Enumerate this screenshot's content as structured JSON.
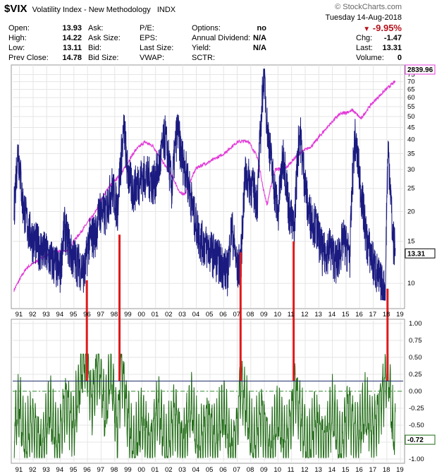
{
  "header": {
    "symbol": "$VIX",
    "name": "Volatility Index - New Methodology",
    "exchange": "INDX",
    "brand": "© StockCharts.com",
    "date": "Tuesday  14-Aug-2018",
    "change_pct": "-9.95%",
    "stats": {
      "open_label": "Open:",
      "open": "13.93",
      "high_label": "High:",
      "high": "14.22",
      "low_label": "Low:",
      "low": "13.11",
      "prev_label": "Prev Close:",
      "prev": "14.78",
      "ask_label": "Ask:",
      "ask": "",
      "asksize_label": "Ask Size:",
      "asksize": "",
      "bid_label": "Bid:",
      "bid": "",
      "bidsize_label": "Bid Size:",
      "bidsize": "",
      "pe_label": "P/E:",
      "pe": "",
      "eps_label": "EPS:",
      "eps": "",
      "lastsize_label": "Last Size:",
      "lastsize": "",
      "vwap_label": "VWAP:",
      "vwap": "",
      "options_label": "Options:",
      "options": "no",
      "div_label": "Annual Dividend:",
      "div": "N/A",
      "yield_label": "Yield:",
      "yield": "N/A",
      "sctr_label": "SCTR:",
      "sctr": "",
      "chg_label": "Chg:",
      "chg": "-1.47",
      "last_label": "Last:",
      "last": "13.31",
      "volume_label": "Volume:",
      "volume": "0"
    }
  },
  "colors": {
    "vix_line": "#1a1a80",
    "spx_line": "#e23bd8",
    "corr_line": "#1f6b14",
    "marker_red": "#e0191b",
    "ref_line": "#1a2a6a",
    "zero_dash": "#2c8a2c",
    "grid": "#e5e5e5",
    "price_tag_bg": "#ffffff"
  },
  "chart_data": [
    {
      "type": "line",
      "title": "$VIX Volatility Index - New Methodology INDX",
      "y_scale": "log",
      "ylim": [
        8,
        80
      ],
      "y_ticks": [
        "10",
        "15",
        "20",
        "25",
        "30",
        "35",
        "40",
        "45",
        "50",
        "55",
        "60",
        "65",
        "70",
        "75"
      ],
      "x_ticks": [
        "91",
        "92",
        "93",
        "94",
        "95",
        "96",
        "97",
        "98",
        "99",
        "00",
        "01",
        "02",
        "03",
        "04",
        "05",
        "06",
        "07",
        "08",
        "09",
        "10",
        "11",
        "12",
        "13",
        "14",
        "15",
        "16",
        "17",
        "18",
        "19"
      ],
      "x_range": [
        1990.5,
        2019.2
      ],
      "last_value_tag": "13.31",
      "overlay_value_tag": "2839.96",
      "series": [
        {
          "values_kind": "VIX",
          "x": [
            1990.6,
            1990.9,
            1991.2,
            1991.6,
            1992.0,
            1992.5,
            1993.0,
            1993.5,
            1994.0,
            1994.3,
            1994.8,
            1995.3,
            1995.8,
            1996.1,
            1996.6,
            1996.9,
            1997.3,
            1997.8,
            1998.2,
            1998.7,
            1998.9,
            1999.3,
            1999.9,
            2000.3,
            2000.9,
            2001.3,
            2001.7,
            2002.2,
            2002.6,
            2002.9,
            2003.3,
            2003.8,
            2004.3,
            2004.8,
            2005.3,
            2005.8,
            2006.3,
            2006.6,
            2007.0,
            2007.3,
            2007.6,
            2008.0,
            2008.5,
            2008.8,
            2008.95,
            2009.2,
            2009.6,
            2010.0,
            2010.4,
            2010.8,
            2011.2,
            2011.6,
            2011.8,
            2012.2,
            2012.8,
            2013.3,
            2013.8,
            2014.3,
            2014.8,
            2015.3,
            2015.65,
            2016.1,
            2016.5,
            2017.0,
            2017.5,
            2017.9,
            2018.1,
            2018.4,
            2018.62
          ],
          "values": [
            20,
            36,
            22,
            17,
            15,
            14,
            13,
            12,
            11,
            17,
            13,
            12,
            11,
            15,
            16,
            20,
            19,
            25,
            20,
            44,
            30,
            24,
            27,
            28,
            26,
            31,
            41,
            24,
            44,
            34,
            28,
            19,
            15,
            14,
            13,
            12,
            11,
            17,
            11,
            13,
            28,
            26,
            22,
            50,
            78,
            45,
            28,
            19,
            34,
            20,
            16,
            44,
            32,
            20,
            17,
            13,
            14,
            12,
            15,
            13,
            40,
            24,
            15,
            12,
            10,
            9,
            36,
            16,
            13.3
          ]
        },
        {
          "values_kind": "S&P 500 overlay",
          "x": [
            1990.6,
            1991.5,
            1992.5,
            1993.5,
            1994.5,
            1995.5,
            1996.5,
            1997.5,
            1998.5,
            1999.5,
            2000.2,
            2000.8,
            2001.5,
            2002.3,
            2002.8,
            2003.2,
            2004.0,
            2005.0,
            2006.0,
            2007.0,
            2007.8,
            2008.5,
            2008.9,
            2009.2,
            2009.8,
            2010.6,
            2011.5,
            2012.5,
            2013.5,
            2014.5,
            2015.5,
            2016.1,
            2016.8,
            2017.5,
            2018.2,
            2018.62
          ],
          "values": [
            300,
            380,
            420,
            450,
            460,
            560,
            680,
            900,
            1050,
            1350,
            1480,
            1420,
            1200,
            1000,
            850,
            850,
            1120,
            1200,
            1300,
            1480,
            1500,
            1250,
            900,
            750,
            1100,
            1120,
            1300,
            1420,
            1700,
            1990,
            2080,
            1900,
            2200,
            2450,
            2700,
            2839.96
          ]
        }
      ]
    },
    {
      "type": "line",
      "title": "",
      "ylim": [
        -1.0,
        1.0
      ],
      "y_ticks": [
        "1.00",
        "0.75",
        "0.50",
        "0.25",
        "0.00",
        "-0.25",
        "-0.50",
        "-0.75",
        "-1.00"
      ],
      "x_ticks": [
        "91",
        "92",
        "93",
        "94",
        "95",
        "96",
        "97",
        "98",
        "99",
        "00",
        "01",
        "02",
        "03",
        "04",
        "05",
        "06",
        "07",
        "08",
        "09",
        "10",
        "11",
        "12",
        "13",
        "14",
        "15",
        "16",
        "17",
        "18",
        "19"
      ],
      "reference_level": 0.15,
      "last_value_tag": "-0.72",
      "series": [
        {
          "values_kind": "correlation",
          "x": [
            1990.6,
            1991.0,
            1991.4,
            1992.0,
            1992.6,
            1993.2,
            1993.8,
            1994.4,
            1995.0,
            1995.6,
            1995.95,
            1996.3,
            1996.8,
            1997.3,
            1997.7,
            1998.2,
            1998.5,
            1998.9,
            1999.4,
            2000.0,
            2000.6,
            2001.2,
            2001.8,
            2002.4,
            2003.0,
            2003.6,
            2004.2,
            2004.8,
            2005.4,
            2006.0,
            2006.6,
            2007.0,
            2007.25,
            2007.6,
            2008.2,
            2008.8,
            2009.4,
            2010.0,
            2010.6,
            2011.1,
            2011.2,
            2011.6,
            2012.2,
            2012.8,
            2013.4,
            2014.0,
            2014.6,
            2015.2,
            2015.8,
            2016.4,
            2017.0,
            2017.6,
            2017.9,
            2018.1,
            2018.4,
            2018.62
          ],
          "values": [
            -0.6,
            -0.2,
            -0.8,
            -0.4,
            -0.9,
            -0.3,
            -0.8,
            -0.1,
            -0.5,
            0.35,
            0.5,
            -0.2,
            0.45,
            -0.4,
            0.3,
            -0.6,
            0.45,
            -0.3,
            -0.9,
            -0.4,
            -0.8,
            -0.2,
            -0.9,
            -0.3,
            -0.8,
            -0.2,
            -0.85,
            -0.4,
            -0.7,
            -0.3,
            -0.9,
            -0.5,
            0.15,
            -0.2,
            -0.85,
            -0.3,
            -0.9,
            -0.4,
            -0.8,
            -0.2,
            0.15,
            -0.3,
            -0.9,
            -0.4,
            -0.8,
            -0.3,
            -0.9,
            -0.2,
            -0.7,
            -0.3,
            -0.6,
            -0.1,
            0.15,
            0.35,
            -0.5,
            -0.72
          ]
        }
      ]
    }
  ],
  "markers": {
    "dates": [
      1995.95,
      1998.35,
      2007.25,
      2011.15,
      2018.05
    ],
    "vix_values": [
      10.3,
      16,
      13.5,
      15,
      9.5
    ]
  }
}
